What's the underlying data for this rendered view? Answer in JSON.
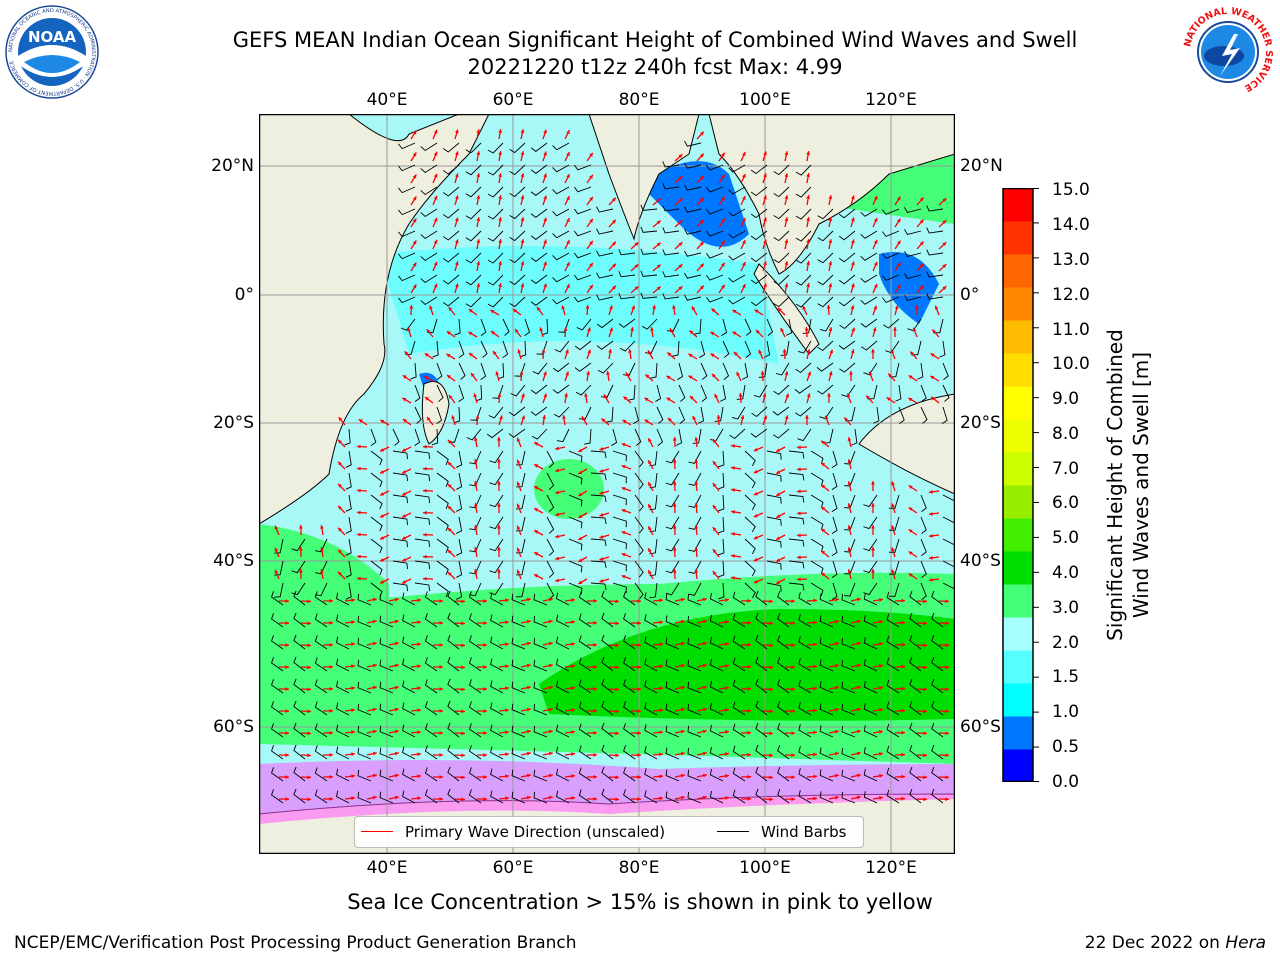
{
  "title": {
    "line1": "GEFS MEAN Indian Ocean Significant Height of Combined Wind Waves and Swell",
    "line2": "20221220 t12z 240h fcst   Max: 4.99"
  },
  "logos": {
    "noaa_text": "NOAA",
    "noaa_ring": "NATIONAL OCEANIC AND ATMOSPHERIC ADMINISTRATION · U.S. DEPARTMENT OF COMMERCE",
    "nws_ring": "NATIONAL WEATHER SERVICE"
  },
  "map": {
    "lon_ticks": [
      "40°E",
      "60°E",
      "80°E",
      "100°E",
      "120°E"
    ],
    "lat_ticks": [
      "20°N",
      "0°",
      "20°S",
      "40°S",
      "60°S"
    ],
    "ocean_color": "#a8f8f8",
    "land_color": "#efefdf"
  },
  "legend": {
    "wave_label": "Primary Wave Direction (unscaled)",
    "wave_color": "#ff0000",
    "wind_label": "Wind Barbs",
    "wind_color": "#000000"
  },
  "colorbar": {
    "label_line1": "Significant Height of Combined",
    "label_line2": "Wind Waves and Swell [m]",
    "ticks": [
      "15.0",
      "14.0",
      "13.0",
      "12.0",
      "11.0",
      "10.0",
      "9.0",
      "8.0",
      "7.0",
      "6.0",
      "5.0",
      "4.0",
      "3.0",
      "2.0",
      "1.5",
      "1.0",
      "0.5",
      "0.0"
    ],
    "colors_bottom_to_top": [
      "#0000ff",
      "#0077ff",
      "#00ffff",
      "#55ffff",
      "#a8ffff",
      "#44ff77",
      "#00dd00",
      "#44ee00",
      "#99ee00",
      "#ccff00",
      "#eeff00",
      "#ffff00",
      "#ffdd00",
      "#ffbb00",
      "#ff8800",
      "#ff6600",
      "#ff3300",
      "#ff0000"
    ]
  },
  "caption": "Sea Ice Concentration > 15% is shown in pink to yellow",
  "footer": {
    "left": "NCEP/EMC/Verification Post Processing Product Generation Branch",
    "right_prefix": "22 Dec 2022 on ",
    "right_italic": "Hera"
  }
}
